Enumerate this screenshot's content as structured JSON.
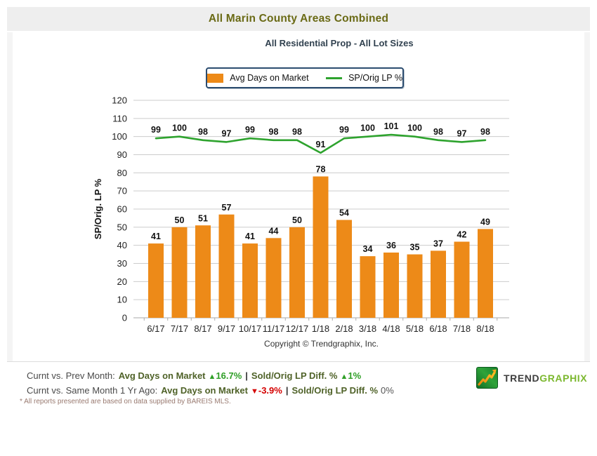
{
  "header": {
    "title": "All Marin County Areas Combined"
  },
  "subtitle": "All Residential Prop - All Lot Sizes",
  "legend": {
    "bar_label": "Avg Days on Market",
    "line_label": "SP/Orig LP %"
  },
  "chart_data": {
    "type": "bar+line combo",
    "categories": [
      "6/17",
      "7/17",
      "8/17",
      "9/17",
      "10/17",
      "11/17",
      "12/17",
      "1/18",
      "2/18",
      "3/18",
      "4/18",
      "5/18",
      "6/18",
      "7/18",
      "8/18"
    ],
    "series": [
      {
        "name": "Avg Days on Market",
        "type": "bar",
        "color": "#ED8A18",
        "values": [
          41,
          50,
          51,
          57,
          41,
          44,
          50,
          78,
          54,
          34,
          36,
          35,
          37,
          42,
          49
        ]
      },
      {
        "name": "SP/Orig LP %",
        "type": "line",
        "color": "#2EA32E",
        "values": [
          99,
          100,
          98,
          97,
          99,
          98,
          98,
          91,
          99,
          100,
          101,
          100,
          98,
          97,
          98
        ]
      }
    ],
    "title": "All Marin County Areas Combined",
    "xlabel": "",
    "ylabel": "SP/Orig. LP %",
    "ylim": [
      0,
      120
    ],
    "ytick_step": 10,
    "grid": true,
    "legend_position": "top"
  },
  "copyright": "Copyright © Trendgraphix, Inc.",
  "icons": {
    "up": "▲",
    "down": "▼"
  },
  "stats": {
    "line1": {
      "prefix": "Curnt vs. Prev Month:",
      "metric1": "Avg Days on Market",
      "value1": "16.7%",
      "sep": "|",
      "metric2": "Sold/Orig LP Diff. %",
      "value2": "1%"
    },
    "line2": {
      "prefix": "Curnt vs. Same Month 1 Yr Ago:",
      "metric1": "Avg Days on Market",
      "value1": "-3.9%",
      "sep": "|",
      "metric2": "Sold/Orig LP Diff. %",
      "value2": "0%"
    }
  },
  "logo": {
    "trend": "TREND",
    "graphix": "GRAPHIX"
  },
  "disclaimer": "* All reports presented are based on data supplied by BAREIS MLS.",
  "colors": {
    "bar_orange": "#ED8A18",
    "line_green": "#2EA32E",
    "title_olive": "#6A6A15",
    "subtitle_slate": "#324250",
    "stat_green": "#2E9E26",
    "stat_red": "#D40000",
    "metric_olive": "#4F6228",
    "logo_green": "#7CB82F",
    "header_bg": "#EEEEEE",
    "gridline": "#CCCCCC"
  }
}
